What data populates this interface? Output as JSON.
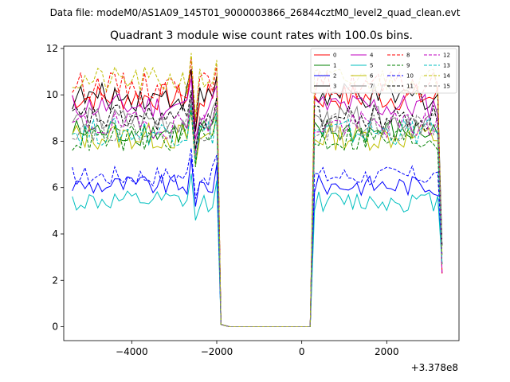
{
  "chart_data": {
    "type": "line",
    "suptitle": "Data file: modeM0/AS1A09_145T01_9000003866_26844cztM0_level2_quad_clean.evt",
    "title": "Quadrant 3 module wise count rates with 100.0s bins.",
    "xlabel": "",
    "ylabel": "",
    "x_offset_label": "+3.378e8",
    "xlim": [
      -5600,
      3700
    ],
    "ylim": [
      -0.6,
      12.1
    ],
    "xticks": [
      -4000,
      -2000,
      0,
      2000
    ],
    "xtick_labels": [
      "−4000",
      "−2000",
      "0",
      "2000"
    ],
    "yticks": [
      0,
      2,
      4,
      6,
      8,
      10,
      12
    ],
    "ytick_labels": [
      "0",
      "2",
      "4",
      "6",
      "8",
      "10",
      "12"
    ],
    "legend_position": "top-right",
    "gap": {
      "start": -1950,
      "end": 250
    },
    "x": [
      -5400,
      -5300,
      -5200,
      -5100,
      -5000,
      -4900,
      -4800,
      -4700,
      -4600,
      -4500,
      -4400,
      -4300,
      -4200,
      -4100,
      -4000,
      -3900,
      -3800,
      -3700,
      -3600,
      -3500,
      -3400,
      -3300,
      -3200,
      -3100,
      -3000,
      -2900,
      -2800,
      -2700,
      -2600,
      -2500,
      -2400,
      -2300,
      -2200,
      -2100,
      -2000,
      -1900,
      -1800,
      -1700,
      -1600,
      -1500,
      -1400,
      -1300,
      -1200,
      -1100,
      -1000,
      -900,
      -800,
      -700,
      -600,
      -500,
      -400,
      -300,
      -200,
      -100,
      0,
      100,
      200,
      300,
      400,
      500,
      600,
      700,
      800,
      900,
      1000,
      1100,
      1200,
      1300,
      1400,
      1500,
      1600,
      1700,
      1800,
      1900,
      2000,
      2100,
      2200,
      2300,
      2400,
      2500,
      2600,
      2700,
      2800,
      2900,
      3000,
      3100,
      3200,
      3300
    ],
    "series": [
      {
        "name": "0",
        "color": "#ff0000",
        "dash": false,
        "base": 9.9
      },
      {
        "name": "1",
        "color": "#008000",
        "dash": false,
        "base": 8.4
      },
      {
        "name": "2",
        "color": "#0000ff",
        "dash": false,
        "base": 6.1
      },
      {
        "name": "3",
        "color": "#000000",
        "dash": false,
        "base": 9.9
      },
      {
        "name": "4",
        "color": "#bf00bf",
        "dash": false,
        "base": 9.5
      },
      {
        "name": "5",
        "color": "#00bfbf",
        "dash": false,
        "base": 5.4
      },
      {
        "name": "6",
        "color": "#bfbf00",
        "dash": false,
        "base": 8.2
      },
      {
        "name": "7",
        "color": "#808080",
        "dash": false,
        "base": 8.9
      },
      {
        "name": "8",
        "color": "#ff0000",
        "dash": true,
        "base": 10.4
      },
      {
        "name": "9",
        "color": "#008000",
        "dash": true,
        "base": 8.1
      },
      {
        "name": "10",
        "color": "#0000ff",
        "dash": true,
        "base": 6.5
      },
      {
        "name": "11",
        "color": "#000000",
        "dash": true,
        "base": 9.0
      },
      {
        "name": "12",
        "color": "#bf00bf",
        "dash": true,
        "base": 8.7
      },
      {
        "name": "13",
        "color": "#00bfbf",
        "dash": true,
        "base": 8.4
      },
      {
        "name": "14",
        "color": "#bfbf00",
        "dash": true,
        "base": 10.6
      },
      {
        "name": "15",
        "color": "#808080",
        "dash": true,
        "base": 8.6
      }
    ]
  }
}
